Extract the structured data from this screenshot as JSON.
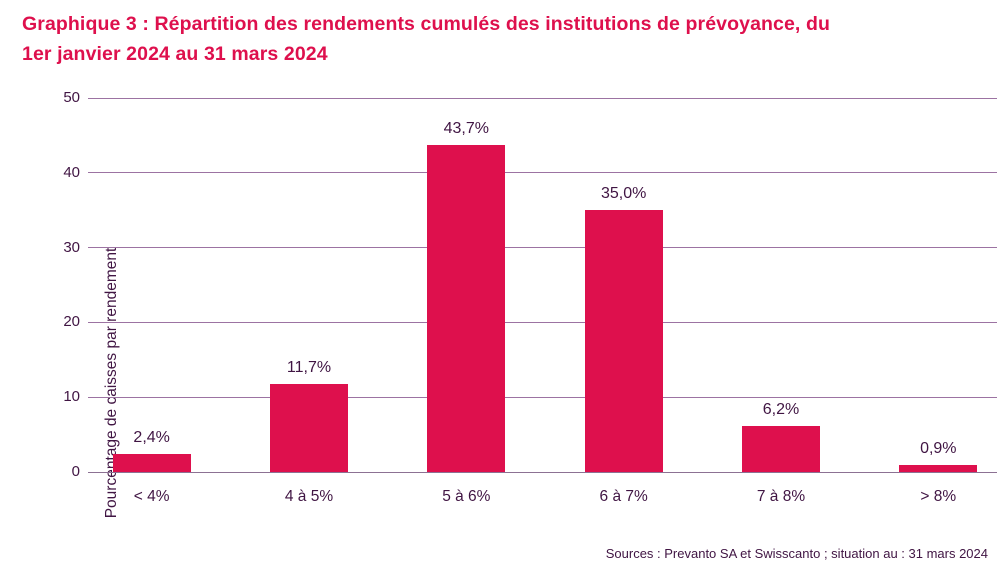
{
  "title": {
    "line1": "Graphique 3 : Répartition des rendements cumulés des institutions de prévoyance, du",
    "line2": "1er janvier 2024 au 31 mars 2024"
  },
  "source": "Sources : Prevanto SA et Swisscanto ; situation au : 31 mars 2024",
  "colors": {
    "accent": "#DE104D",
    "text": "#401543",
    "gridline": "#9C73A2",
    "axis_line": "#8C7193"
  },
  "chart_data": {
    "type": "bar",
    "categories": [
      "< 4%",
      "4 à 5%",
      "5 à 6%",
      "6 à 7%",
      "7 à 8%",
      "> 8%"
    ],
    "values": [
      2.4,
      11.7,
      43.7,
      35.0,
      6.2,
      0.9
    ],
    "value_labels": [
      "2,4%",
      "11,7%",
      "43,7%",
      "35,0%",
      "6,2%",
      "0,9%"
    ],
    "xlabel": "",
    "ylabel": "Pourcentage de caisses par rendement",
    "ylim": [
      0,
      50
    ],
    "yticks": [
      0,
      10,
      20,
      30,
      40,
      50
    ],
    "grid": true,
    "legend": "none",
    "bar_color": "#DE104D"
  }
}
